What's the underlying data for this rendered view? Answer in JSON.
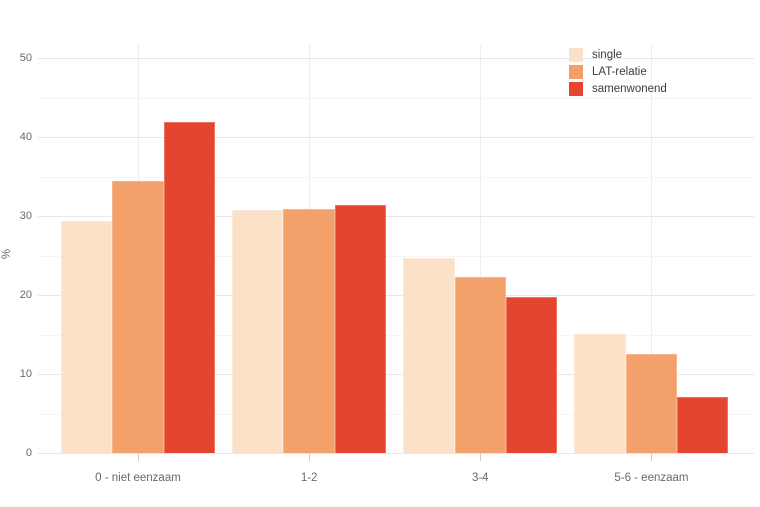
{
  "chart_data": {
    "type": "bar",
    "title": "",
    "xlabel": "",
    "ylabel": "%",
    "categories": [
      "0 - niet eenzaam",
      "1-2",
      "3-4",
      "5-6 - eenzaam"
    ],
    "series": [
      {
        "name": "single",
        "color": "#FAE1C8",
        "edge_color": "#FCEBD9",
        "values": [
          29.4,
          30.7,
          24.7,
          15.1
        ]
      },
      {
        "name": "LAT-relatie",
        "color": "#F4A06B",
        "edge_color": "#F7B68E",
        "values": [
          34.4,
          30.9,
          22.3,
          12.5
        ]
      },
      {
        "name": "samenwonend",
        "color": "#E3452E",
        "edge_color": "#EC7460",
        "values": [
          41.9,
          31.4,
          19.8,
          7.1
        ]
      }
    ],
    "ylim": [
      0,
      51.5
    ],
    "yticks": [
      0,
      10,
      20,
      30,
      40,
      50
    ],
    "yticks_minor": [
      5,
      15,
      25,
      35,
      45
    ],
    "grid": true,
    "legend_position": "top-right",
    "background": "#ffffff",
    "tick_label_color": "#696969",
    "legend_label_color": "#3d3d3d"
  }
}
